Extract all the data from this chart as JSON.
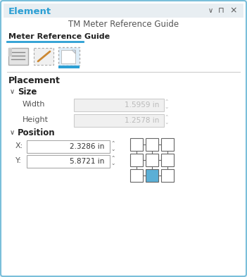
{
  "fig_w": 3.51,
  "fig_h": 3.93,
  "dpi": 100,
  "bg_color": "#eaf2f8",
  "panel_bg": "#ffffff",
  "border_color": "#7bbfda",
  "title_element": "Element",
  "title_element_color": "#2b9fd4",
  "subtitle": "TM Meter Reference Guide",
  "subtitle_color": "#555555",
  "tab_label": "Meter Reference Guide",
  "tab_label_color": "#222222",
  "tab_underline_color": "#2b9fd4",
  "section_placement": "Placement",
  "section_size": "Size",
  "section_position": "Position",
  "label_width": "Width",
  "label_height": "Height",
  "label_x": "X:",
  "label_y": "Y:",
  "value_width": "1.5959 in",
  "value_height": "1.2578 in",
  "value_x": "2.3286 in",
  "value_y": "5.8721 in",
  "field_bg_disabled": "#f0f0f0",
  "field_bg_enabled": "#ffffff",
  "field_border_disabled": "#cccccc",
  "field_border_enabled": "#aaaaaa",
  "field_text_disabled": "#bbbbbb",
  "field_text_enabled": "#333333",
  "grid_highlight": "#5bafd6",
  "grid_cell_color": "#ffffff",
  "grid_cell_border": "#666666",
  "top_ctrl_color": "#555555",
  "chevron_color": "#444444",
  "label_color": "#555555",
  "section_color": "#222222"
}
